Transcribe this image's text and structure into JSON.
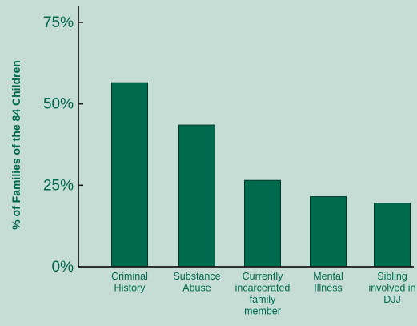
{
  "chart_data": {
    "type": "bar",
    "title": "",
    "ylabel": "% of Families of the 84 Children",
    "xlabel": "",
    "ylim": [
      0,
      75
    ],
    "yticks": [
      {
        "value": 0,
        "label": "0%"
      },
      {
        "value": 25,
        "label": "25%"
      },
      {
        "value": 50,
        "label": "50%"
      },
      {
        "value": 75,
        "label": "75%"
      }
    ],
    "categories": [
      [
        "Criminal",
        "History"
      ],
      [
        "Substance",
        "Abuse"
      ],
      [
        "Currently",
        "incarcerated",
        "family",
        "member"
      ],
      [
        "Mental",
        "Illness"
      ],
      [
        "Sibling",
        "involved in",
        "DJJ"
      ]
    ],
    "values": [
      56.5,
      43.5,
      26.5,
      21.5,
      19.5
    ],
    "grid": false,
    "legend": "none",
    "colors": {
      "background": "#c5ddd5",
      "bar": "#006a4e",
      "bar_stroke": "#003b2a",
      "axis": "#1a1a1a",
      "text": "#006a4e"
    }
  }
}
